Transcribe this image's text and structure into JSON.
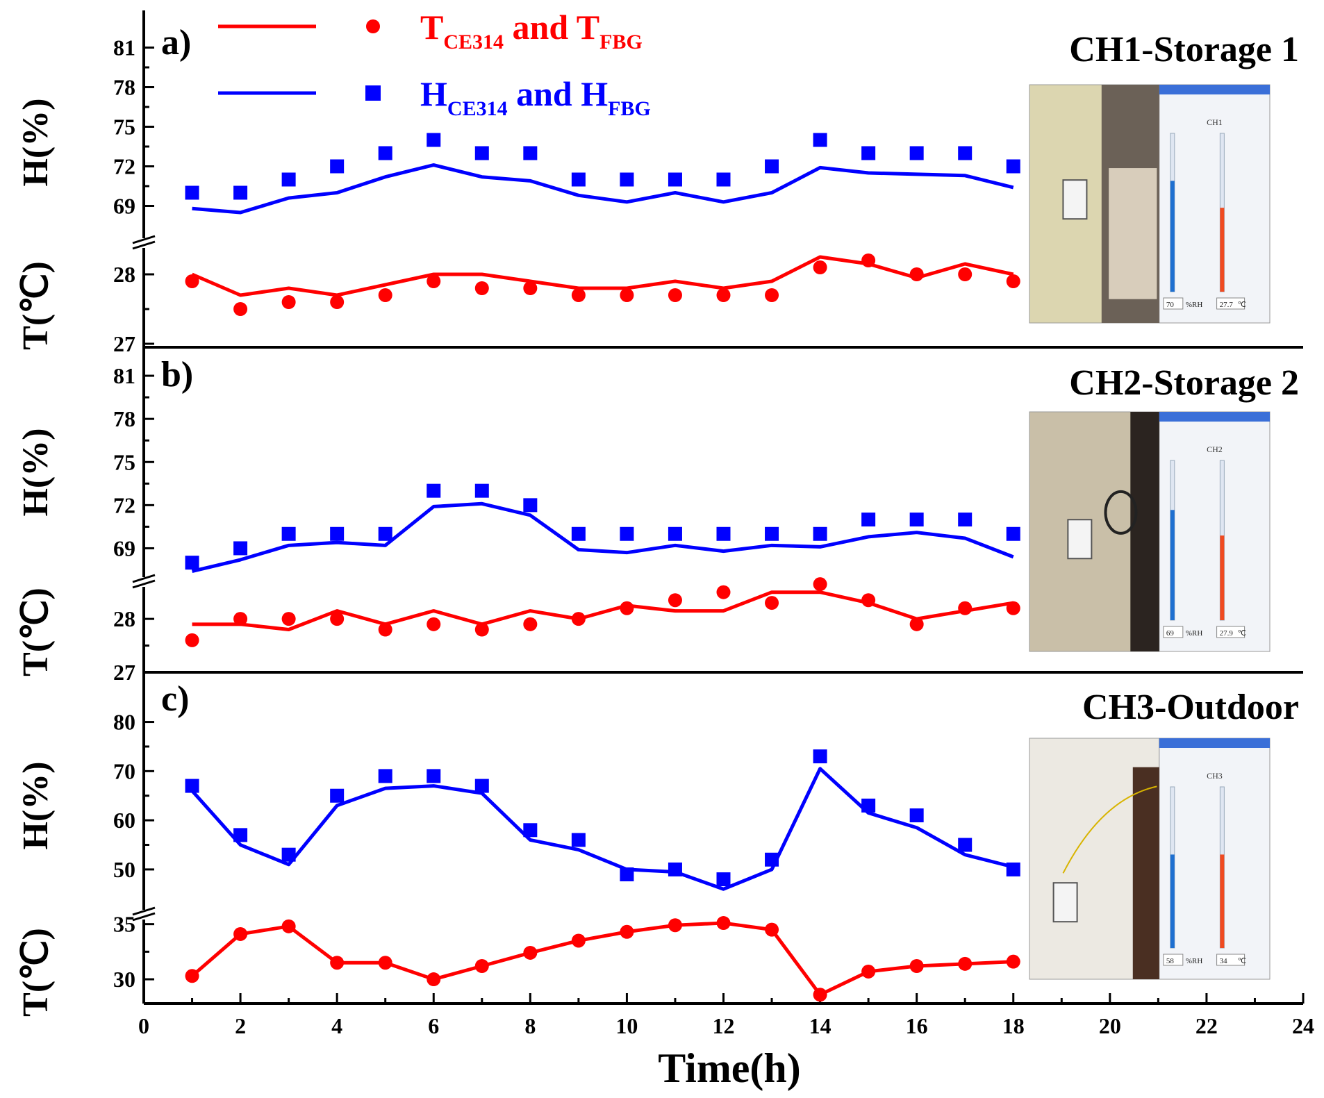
{
  "chart_data": {
    "type": "line",
    "xlabel": "Time(h)",
    "xlim": [
      0,
      24
    ],
    "xticks": [
      0,
      2,
      4,
      6,
      8,
      10,
      12,
      14,
      16,
      18,
      20,
      22,
      24
    ],
    "x": [
      1,
      2,
      3,
      4,
      5,
      6,
      7,
      8,
      9,
      10,
      11,
      12,
      13,
      14,
      15,
      16,
      17,
      18
    ],
    "legend": {
      "temperature": {
        "base": "T",
        "sub1": "CE314",
        "mid": " and T",
        "sub2": "FBG",
        "color": "#ff0000"
      },
      "humidity": {
        "base": "H",
        "sub1": "CE314",
        "mid": " and H",
        "sub2": "FBG",
        "color": "#0000ff"
      }
    },
    "panels": [
      {
        "label": "a)",
        "title": "CH1-Storage 1",
        "humidity_label": "H(%)",
        "temperature_label": "T(℃)",
        "h_ticks": [
          69,
          72,
          75,
          78,
          81
        ],
        "h_range": [
          67.5,
          82.5
        ],
        "t_ticks": [
          27,
          28
        ],
        "t_range": [
          27,
          28.55
        ],
        "series": [
          {
            "name": "H_CE314",
            "kind": "line",
            "quantity": "humidity",
            "values": [
              68.8,
              68.5,
              69.6,
              70.0,
              71.2,
              72.1,
              71.2,
              70.9,
              69.8,
              69.3,
              70.0,
              69.3,
              70.0,
              71.9,
              71.5,
              71.4,
              71.3,
              70.4
            ]
          },
          {
            "name": "H_FBG",
            "kind": "scatter",
            "quantity": "humidity",
            "values": [
              70,
              70,
              71,
              72,
              73,
              74,
              73,
              73,
              71,
              71,
              71,
              71,
              72,
              74,
              73,
              73,
              73,
              72
            ]
          },
          {
            "name": "T_CE314",
            "kind": "line",
            "quantity": "temperature",
            "values": [
              28.0,
              27.7,
              27.8,
              27.7,
              27.85,
              28.0,
              28.0,
              27.9,
              27.8,
              27.8,
              27.9,
              27.8,
              27.9,
              28.25,
              28.15,
              27.95,
              28.15,
              28.0
            ]
          },
          {
            "name": "T_FBG",
            "kind": "scatter",
            "quantity": "temperature",
            "values": [
              27.9,
              27.5,
              27.6,
              27.6,
              27.7,
              27.9,
              27.8,
              27.8,
              27.7,
              27.7,
              27.7,
              27.7,
              27.7,
              28.1,
              28.2,
              28.0,
              28.0,
              27.9
            ]
          }
        ],
        "screen": {
          "channel": "CH1",
          "rh_value": "70",
          "rh_unit": "%RH",
          "temp_value": "27.7",
          "temp_unit": "℃"
        }
      },
      {
        "label": "b)",
        "title": "CH2-Storage 2",
        "humidity_label": "H(%)",
        "temperature_label": "T(℃)",
        "h_ticks": [
          69,
          72,
          75,
          78,
          81
        ],
        "h_range": [
          66.8,
          82.5
        ],
        "t_ticks": [
          27,
          28
        ],
        "t_range": [
          27,
          28.6
        ],
        "series": [
          {
            "name": "H_CE314",
            "kind": "line",
            "quantity": "humidity",
            "values": [
              67.4,
              68.2,
              69.2,
              69.4,
              69.2,
              71.9,
              72.1,
              71.3,
              68.9,
              68.7,
              69.2,
              68.8,
              69.2,
              69.1,
              69.8,
              70.1,
              69.7,
              68.4
            ]
          },
          {
            "name": "H_FBG",
            "kind": "scatter",
            "quantity": "humidity",
            "values": [
              68,
              69,
              70,
              70,
              70,
              73,
              73,
              72,
              70,
              70,
              70,
              70,
              70,
              70,
              71,
              71,
              71,
              70
            ]
          },
          {
            "name": "T_CE314",
            "kind": "line",
            "quantity": "temperature",
            "values": [
              27.9,
              27.9,
              27.8,
              28.15,
              27.9,
              28.15,
              27.9,
              28.15,
              28.0,
              28.25,
              28.15,
              28.15,
              28.5,
              28.5,
              28.3,
              28.0,
              28.15,
              28.3
            ]
          },
          {
            "name": "T_FBG",
            "kind": "scatter",
            "quantity": "temperature",
            "values": [
              27.6,
              28.0,
              28.0,
              28.0,
              27.8,
              27.9,
              27.8,
              27.9,
              28.0,
              28.2,
              28.35,
              28.5,
              28.3,
              28.65,
              28.35,
              27.9,
              28.2,
              28.2
            ]
          }
        ],
        "screen": {
          "channel": "CH2",
          "rh_value": "69",
          "rh_unit": "%RH",
          "temp_value": "27.9",
          "temp_unit": "℃"
        }
      },
      {
        "label": "c)",
        "title": "CH3-Outdoor",
        "humidity_label": "H(%)",
        "temperature_label": "T(℃)",
        "h_ticks": [
          50,
          60,
          70,
          80
        ],
        "h_range": [
          42.5,
          87
        ],
        "t_ticks": [
          30,
          35
        ],
        "t_range": [
          27.8,
          36.3
        ],
        "series": [
          {
            "name": "H_CE314",
            "kind": "line",
            "quantity": "humidity",
            "values": [
              66,
              55,
              51,
              63,
              66.5,
              67,
              65.5,
              56,
              54,
              50,
              49.5,
              46,
              50,
              70.5,
              61.5,
              58.5,
              53,
              50.5
            ]
          },
          {
            "name": "H_FBG",
            "kind": "scatter",
            "quantity": "humidity",
            "values": [
              67,
              57,
              53,
              65,
              69,
              69,
              67,
              58,
              56,
              49,
              50,
              48,
              52,
              73,
              63,
              61,
              55,
              50
            ]
          },
          {
            "name": "T_CE314",
            "kind": "line",
            "quantity": "temperature",
            "values": [
              30.3,
              34.1,
              34.8,
              31.5,
              31.5,
              30.0,
              31.2,
              32.4,
              33.5,
              34.3,
              34.9,
              35.1,
              34.5,
              28.6,
              30.7,
              31.2,
              31.4,
              31.6
            ]
          },
          {
            "name": "T_FBG",
            "kind": "scatter",
            "quantity": "temperature",
            "values": [
              30.3,
              34.1,
              34.8,
              31.5,
              31.5,
              30.0,
              31.2,
              32.4,
              33.5,
              34.3,
              34.9,
              35.1,
              34.5,
              28.6,
              30.7,
              31.2,
              31.4,
              31.6
            ]
          }
        ],
        "screen": {
          "channel": "CH3",
          "rh_value": "58",
          "rh_unit": "%RH",
          "temp_value": "34",
          "temp_unit": "℃"
        }
      }
    ]
  }
}
